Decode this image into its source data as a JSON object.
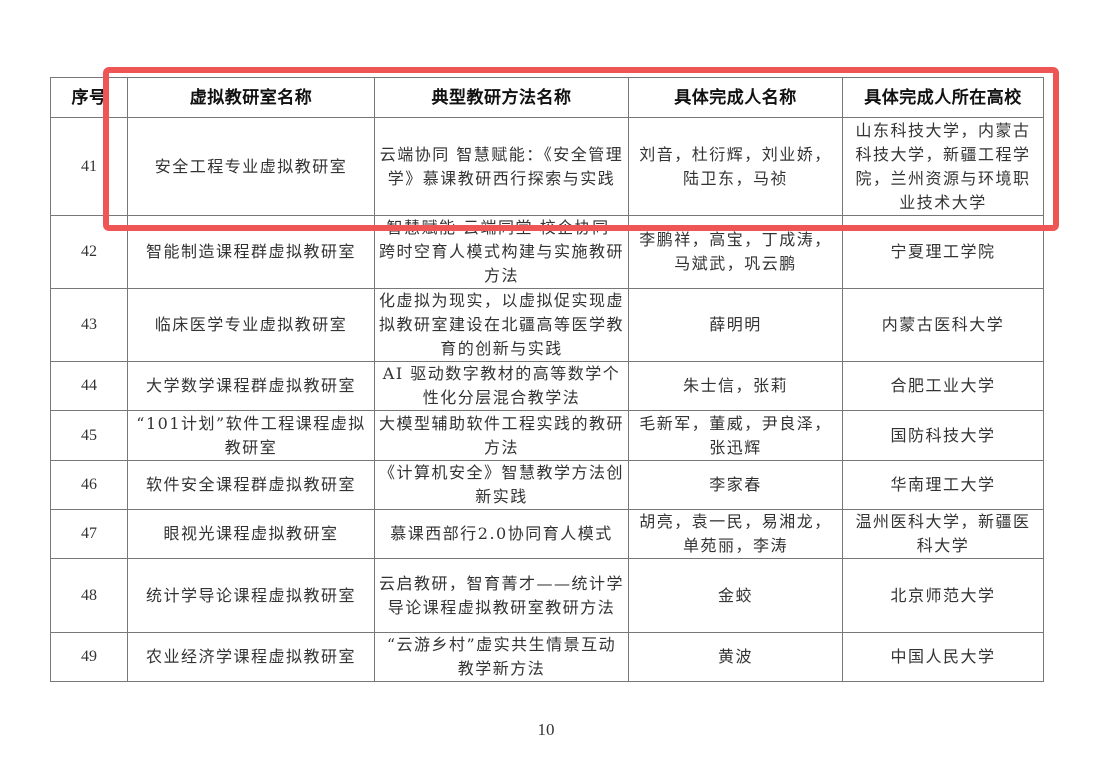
{
  "table": {
    "headers": [
      "序号",
      "虚拟教研室名称",
      "典型教研方法名称",
      "具体完成人名称",
      "具体完成人所在高校"
    ],
    "rows": [
      {
        "no": "41",
        "lab": "安全工程专业虚拟教研室",
        "method": "云端协同 智慧赋能：《安全管理学》慕课教研西行探索与实践",
        "people": "刘音，杜衍辉，刘业娇，陆卫东，马祯",
        "school": "山东科技大学，内蒙古科技大学，新疆工程学院，兰州资源与环境职业技术大学"
      },
      {
        "no": "42",
        "lab": "智能制造课程群虚拟教研室",
        "method": "智慧赋能·云端同堂·校企协同-跨时空育人模式构建与实施教研方法",
        "people": "李鹏祥，高宝，丁成涛，马斌武，巩云鹏",
        "school": "宁夏理工学院"
      },
      {
        "no": "43",
        "lab": "临床医学专业虚拟教研室",
        "method": "化虚拟为现实，以虚拟促实现虚拟教研室建设在北疆高等医学教育的创新与实践",
        "people": "薛明明",
        "school": "内蒙古医科大学"
      },
      {
        "no": "44",
        "lab": "大学数学课程群虚拟教研室",
        "method": "AI 驱动数字教材的高等数学个性化分层混合教学法",
        "people": "朱士信，张莉",
        "school": "合肥工业大学"
      },
      {
        "no": "45",
        "lab": "“101计划”软件工程课程虚拟教研室",
        "method": "大模型辅助软件工程实践的教研方法",
        "people": "毛新军，董威，尹良泽，张迅辉",
        "school": "国防科技大学"
      },
      {
        "no": "46",
        "lab": "软件安全课程群虚拟教研室",
        "method": "《计算机安全》智慧教学方法创新实践",
        "people": "李家春",
        "school": "华南理工大学"
      },
      {
        "no": "47",
        "lab": "眼视光课程虚拟教研室",
        "method": "慕课西部行2.0协同育人模式",
        "people": "胡亮，袁一民，易湘龙，单苑丽，李涛",
        "school": "温州医科大学，新疆医科大学"
      },
      {
        "no": "48",
        "lab": "统计学导论课程虚拟教研室",
        "method": "云启教研，智育菁才——统计学导论课程虚拟教研室教研方法",
        "people": "金蛟",
        "school": "北京师范大学"
      },
      {
        "no": "49",
        "lab": "农业经济学课程虚拟教研室",
        "method": "“云游乡村”虚实共生情景互动教学新方法",
        "people": "黄波",
        "school": "中国人民大学"
      }
    ]
  },
  "page_number": "10",
  "highlight_color": "#f05555"
}
